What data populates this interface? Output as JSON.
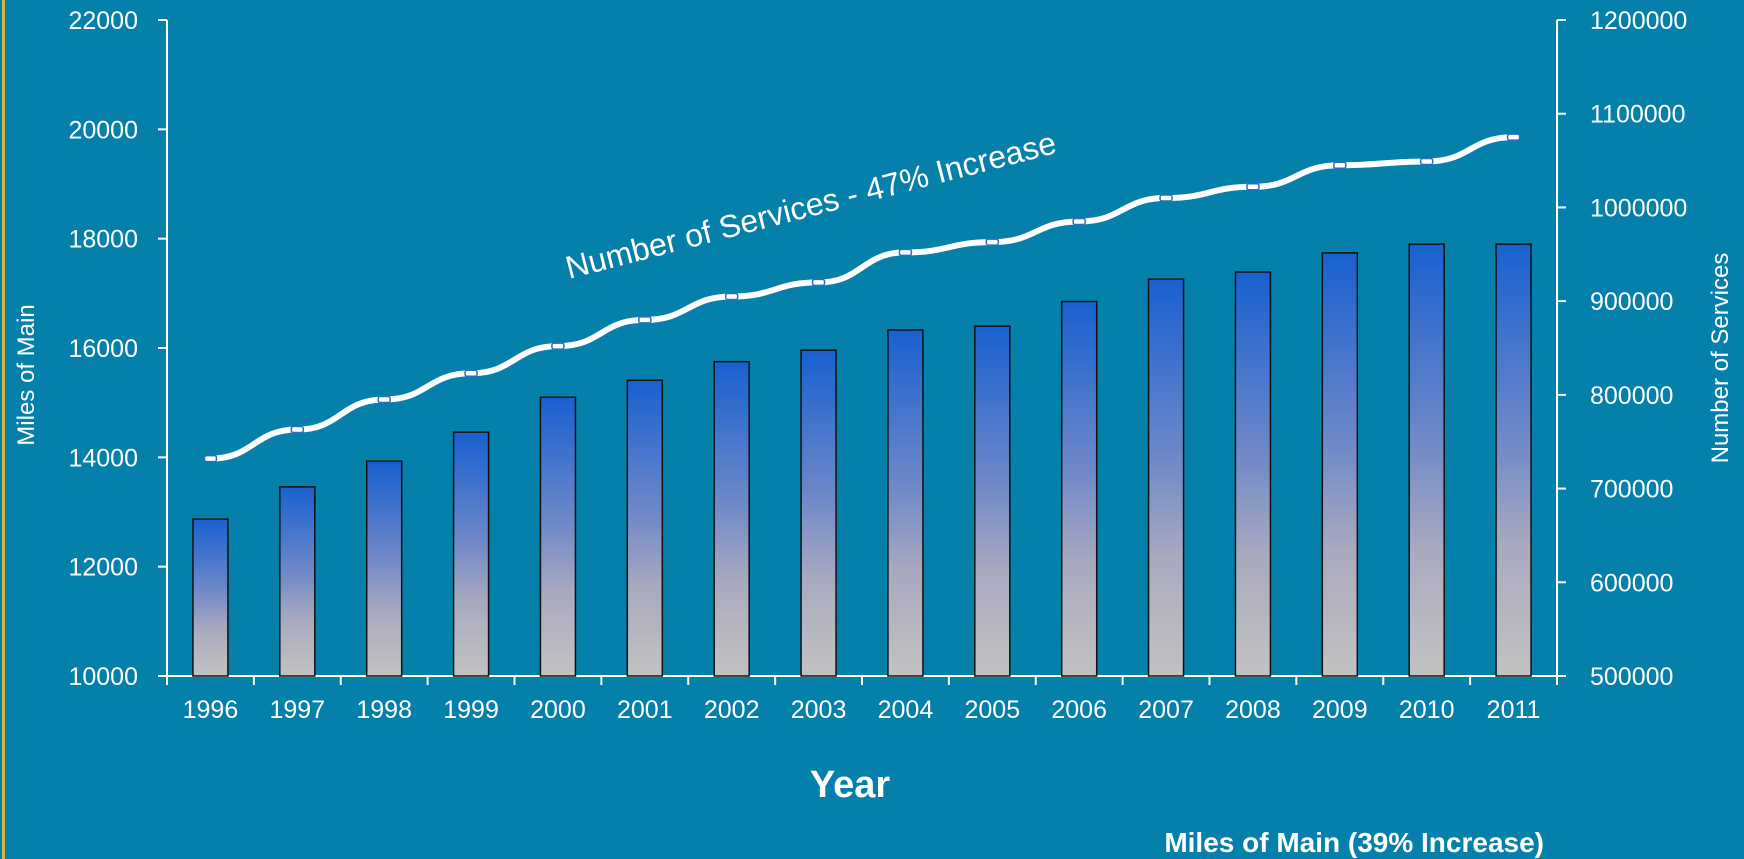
{
  "chart_data": {
    "type": "bar",
    "categories": [
      "1996",
      "1997",
      "1998",
      "1999",
      "2000",
      "2001",
      "2002",
      "2003",
      "2004",
      "2005",
      "2006",
      "2007",
      "2008",
      "2009",
      "2010",
      "2011"
    ],
    "series": [
      {
        "name": "Miles of Main",
        "type": "bar",
        "axis": "left",
        "values": [
          12870,
          13460,
          13930,
          14460,
          15100,
          15410,
          15750,
          15960,
          16330,
          16400,
          16850,
          17260,
          17390,
          17740,
          17900,
          17900
        ]
      },
      {
        "name": "Number of Services",
        "type": "line",
        "axis": "right",
        "values": [
          732000,
          763000,
          795000,
          823000,
          852000,
          880000,
          905000,
          920000,
          952000,
          963000,
          985000,
          1010000,
          1022000,
          1045000,
          1049000,
          1075000
        ]
      }
    ],
    "xlabel": "Year",
    "ylabel": "Miles of Main",
    "y2label": "Number of Services",
    "ylim": [
      10000,
      22000
    ],
    "y2lim": [
      500000,
      1200000
    ],
    "yticks": [
      "10000",
      "12000",
      "14000",
      "16000",
      "18000",
      "20000",
      "22000"
    ],
    "y2ticks": [
      "500000",
      "600000",
      "700000",
      "800000",
      "900000",
      "1000000",
      "1100000",
      "1200000"
    ],
    "annotations": {
      "services": "Number of Services - 47% Increase",
      "main": "Miles of Main (39% Increase)"
    },
    "grid": false,
    "legend": "none"
  },
  "colors": {
    "background": "#0580aa",
    "bar_top": "#1860d0",
    "bar_bottom": "#c0c0c0",
    "line": "#ffffff",
    "axis": "#ffffff"
  }
}
